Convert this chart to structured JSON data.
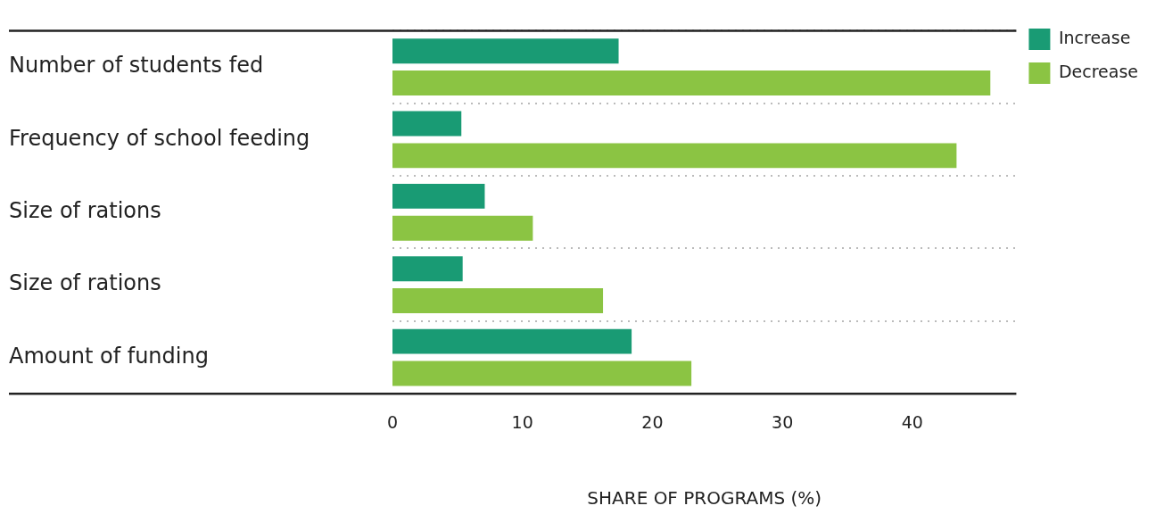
{
  "chart_data": {
    "type": "bar",
    "orientation": "horizontal",
    "categories": [
      "Number of students fed",
      "Frequency of school feeding",
      "Size of rations",
      "Size of rations",
      "Amount of funding"
    ],
    "series": [
      {
        "name": "Increase",
        "color": "#199b74",
        "values": [
          17.4,
          5.3,
          7.1,
          5.4,
          18.4
        ]
      },
      {
        "name": "Decrease",
        "color": "#8bc443",
        "values": [
          46,
          43.4,
          10.8,
          16.2,
          23
        ]
      }
    ],
    "xlabel": "SHARE OF PROGRAMS (%)",
    "xlim": [
      0,
      48
    ],
    "xticks": [
      0,
      10,
      20,
      30,
      40
    ],
    "grid": "y",
    "legend": "top right"
  }
}
